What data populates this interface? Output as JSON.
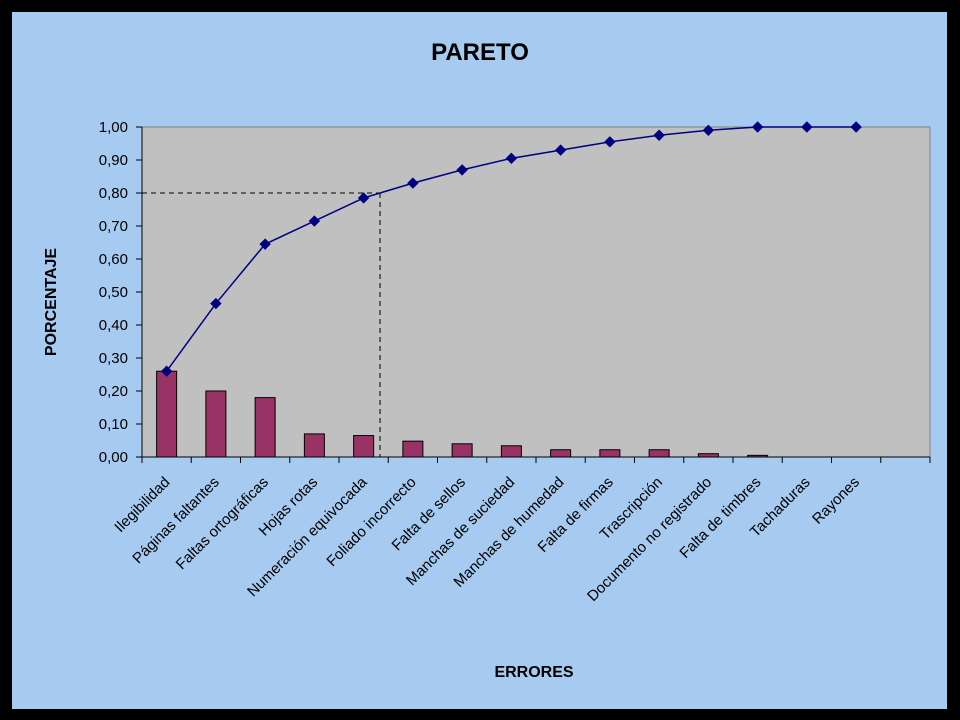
{
  "chart_data": {
    "type": "bar",
    "title": "PARETO",
    "xlabel": "ERRORES",
    "ylabel": "PORCENTAJE",
    "ylim": [
      0,
      1
    ],
    "y_ticks": [
      "0,00",
      "0,10",
      "0,20",
      "0,30",
      "0,40",
      "0,50",
      "0,60",
      "0,70",
      "0,80",
      "0,90",
      "1,00"
    ],
    "categories": [
      "Ilegibilidad",
      "Páginas faltantes",
      "Faltas ortográficas",
      "Hojas rotas",
      "Numeración equivocada",
      "Foliado incorrecto",
      "Falta de sellos",
      "Manchas de suciedad",
      "Manchas de humedad",
      "Falta de firmas",
      "Trascripción",
      "Documento no registrado",
      "Falta de timbres",
      "Tachaduras",
      "Rayones"
    ],
    "series": [
      {
        "type": "bar",
        "values": [
          0.26,
          0.2,
          0.18,
          0.07,
          0.065,
          0.048,
          0.04,
          0.034,
          0.022,
          0.022,
          0.022,
          0.01,
          0.005,
          0,
          0
        ],
        "color": "#993366"
      },
      {
        "type": "line",
        "values": [
          0.26,
          0.465,
          0.645,
          0.715,
          0.785,
          0.83,
          0.87,
          0.905,
          0.93,
          0.955,
          0.975,
          0.99,
          1.0,
          1.0,
          1.0
        ],
        "color": "#000080"
      }
    ],
    "reference_level": 0.8,
    "grid": false,
    "legend": "none",
    "plot_background": "#c0c0c0",
    "chart_background": "#a6caf0"
  }
}
